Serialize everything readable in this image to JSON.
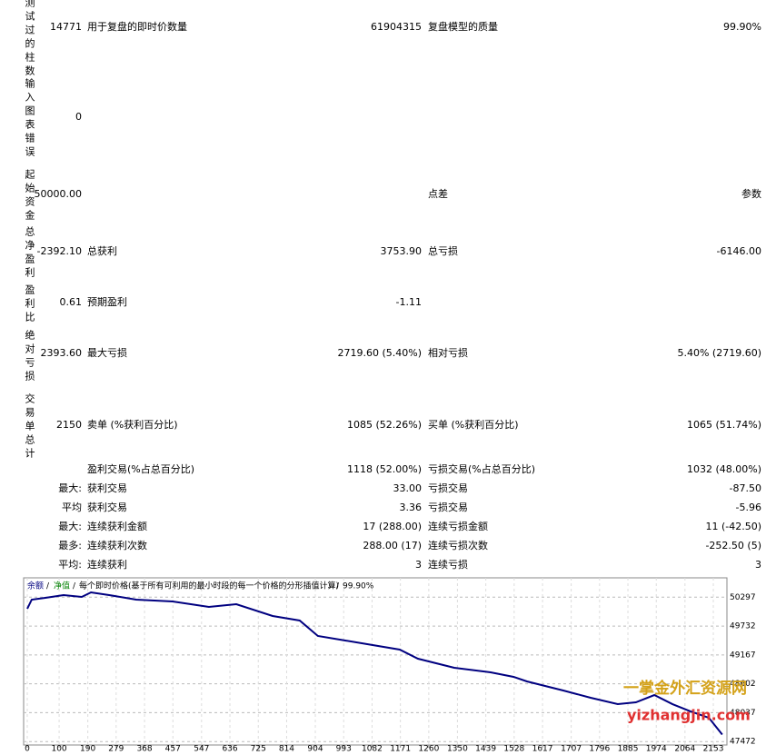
{
  "report": {
    "side_labels": [
      "测试过的柱数",
      "输入图表错误",
      "起始资金",
      "总净盈利",
      "盈利比",
      "绝对亏损",
      "交易单总计"
    ],
    "rows": [
      {
        "a": "14771",
        "b": "用于复盘的即时价数量",
        "c": "61904315",
        "d": "复盘模型的质量",
        "e": "99.90%"
      },
      {
        "a": "0"
      },
      {
        "a": "50000.00",
        "d": "点差",
        "e": "参数"
      },
      {
        "a": "-2392.10",
        "b": "总获利",
        "c": "3753.90",
        "d": "总亏损",
        "e": "-6146.00"
      },
      {
        "a": "0.61",
        "b": "预期盈利",
        "c": "-1.11"
      },
      {
        "a": "2393.60",
        "b": "最大亏损",
        "c": "2719.60 (5.40%)",
        "d": "相对亏损",
        "e": "5.40% (2719.60)"
      },
      {
        "a": "2150",
        "b": "卖单 (%获利百分比)",
        "c": "1085 (52.26%)",
        "d": "买单 (%获利百分比)",
        "e": "1065 (51.74%)"
      },
      {
        "b": "盈利交易(%占总百分比)",
        "c": "1118 (52.00%)",
        "d": "亏损交易(%占总百分比)",
        "e": "1032 (48.00%)"
      },
      {
        "a": "最大:",
        "b": "获利交易",
        "c": "33.00",
        "d": "亏损交易",
        "e": "-87.50"
      },
      {
        "a": "平均",
        "b": "获利交易",
        "c": "3.36",
        "d": "亏损交易",
        "e": "-5.96"
      },
      {
        "a": "最大:",
        "b": "连续获利金额",
        "c": "17 (288.00)",
        "d": "连续亏损金额",
        "e": "11 (-42.50)"
      },
      {
        "a": "最多:",
        "b": "连续获利次数",
        "c": "288.00 (17)",
        "d": "连续亏损次数",
        "e": "-252.50 (5)"
      },
      {
        "a": "平均:",
        "b": "连续获利",
        "c": "3",
        "d": "连续亏损",
        "e": "3"
      }
    ]
  },
  "chart_data": {
    "type": "line",
    "title": "每个即时价格(基于所有可利用的最小时段的每一个价格的分形插值计算)",
    "quality": "99.90%",
    "equity_label": "净值",
    "x": [
      0,
      14,
      57,
      114,
      171,
      200,
      257,
      342,
      456,
      570,
      656,
      770,
      855,
      912,
      998,
      1084,
      1169,
      1226,
      1340,
      1454,
      1526,
      1568,
      1682,
      1768,
      1853,
      1910,
      1968,
      2025,
      2082,
      2139,
      2181
    ],
    "series": [
      {
        "name": "余额",
        "color": "#000080",
        "values": [
          50071,
          50249,
          50284,
          50338,
          50302,
          50391,
          50338,
          50249,
          50213,
          50107,
          50160,
          49929,
          49840,
          49538,
          49449,
          49360,
          49271,
          49093,
          48915,
          48826,
          48738,
          48649,
          48471,
          48329,
          48204,
          48240,
          48382,
          48204,
          48062,
          47937,
          47608
        ]
      }
    ],
    "xlim": [
      0,
      2200
    ],
    "xticks": [
      0,
      100,
      190,
      279,
      368,
      457,
      547,
      636,
      725,
      814,
      904,
      993,
      1082,
      1171,
      1260,
      1350,
      1439,
      1528,
      1617,
      1707,
      1796,
      1885,
      1974,
      2064,
      2153
    ],
    "ylim": [
      47440,
      50640
    ],
    "yticks": [
      47472,
      48037,
      48602,
      49167,
      49732,
      50297
    ],
    "grid": true,
    "watermark": [
      "一掌金外汇资源网",
      "yizhangjin.com"
    ]
  }
}
